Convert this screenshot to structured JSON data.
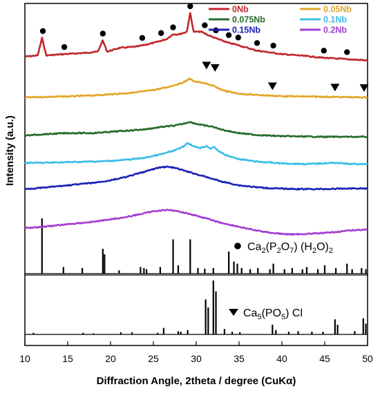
{
  "chart_data": {
    "type": "line",
    "title": "",
    "xlabel": "Diffraction Angle, 2theta / degree (CuKα)",
    "ylabel": "Intensity (a.u.)",
    "xlim": [
      10,
      50
    ],
    "xticks": [
      10,
      15,
      20,
      25,
      30,
      35,
      40,
      45,
      50
    ],
    "yticks_shown": false,
    "legend_position": "top-right",
    "grid": false,
    "series": [
      {
        "name": "0Nb",
        "color": "#c0262b",
        "x": [
          10,
          11.5,
          12,
          12.5,
          14.5,
          17,
          18.5,
          19.1,
          19.6,
          21,
          23,
          25,
          26.5,
          27.3,
          28,
          28.9,
          29.3,
          29.7,
          30.6,
          31.5,
          32.2,
          33,
          33.8,
          34.5,
          35,
          36,
          37,
          38,
          39,
          40,
          42,
          45,
          47.5,
          50
        ],
        "y": [
          20,
          21,
          35,
          21,
          22,
          23,
          24,
          33,
          24,
          27,
          28,
          31,
          34,
          38,
          38,
          40,
          55,
          40,
          40,
          37,
          35,
          33,
          31,
          30,
          29,
          27,
          25,
          24,
          23,
          22,
          21,
          19,
          18,
          17
        ]
      },
      {
        "name": "0.05Nb",
        "color": "#e2a527",
        "x": [
          10,
          13,
          16,
          19,
          21,
          23,
          25,
          26.5,
          27.5,
          28.5,
          29.2,
          29.8,
          30.5,
          31.2,
          31.7,
          32.1,
          32.6,
          33.5,
          35,
          37,
          40,
          45,
          50
        ],
        "y": [
          15,
          15.5,
          16,
          17,
          18,
          19,
          21,
          23,
          25,
          27,
          30,
          28,
          27,
          26,
          25,
          24,
          22,
          20,
          18,
          17,
          16,
          15.5,
          15
        ]
      },
      {
        "name": "0.075Nb",
        "color": "#266b2b",
        "x": [
          10,
          12,
          15,
          18,
          20,
          22,
          24,
          26,
          27.5,
          28.5,
          29.2,
          30,
          31,
          31.5,
          32,
          32.6,
          33.5,
          35,
          37,
          40,
          45,
          50
        ],
        "y": [
          6,
          7,
          8,
          8,
          9,
          10,
          11,
          13,
          14,
          15.5,
          17,
          15.5,
          14,
          13.5,
          13,
          11.5,
          10,
          8,
          6.5,
          5.5,
          5,
          5
        ]
      },
      {
        "name": "0.1Nb",
        "color": "#3bbde8",
        "x": [
          10,
          12,
          15,
          18,
          20,
          22,
          24,
          26,
          27.5,
          28.5,
          29,
          29.8,
          30.5,
          31.2,
          31.7,
          32.1,
          32.7,
          33.5,
          35,
          37,
          40,
          43,
          46.2,
          48,
          50
        ],
        "y": [
          3,
          3,
          3.5,
          4,
          4.5,
          5.5,
          7,
          10,
          13,
          16,
          19,
          16,
          15,
          16.5,
          14.5,
          15.5,
          12,
          9,
          6,
          4,
          2.5,
          2,
          3,
          2,
          2
        ]
      },
      {
        "name": "0.15Nb",
        "color": "#1a22b5",
        "x": [
          10,
          12,
          15,
          18,
          20,
          22,
          24,
          25.5,
          26.5,
          27.5,
          28.5,
          30,
          31.5,
          33,
          35,
          37,
          39,
          42,
          45,
          48,
          50
        ],
        "y": [
          3,
          4,
          6,
          8,
          10,
          13,
          17,
          20,
          21,
          20,
          18,
          15,
          12,
          9,
          6,
          4.5,
          3.5,
          3,
          3,
          3.5,
          3.5
        ]
      },
      {
        "name": "0.2Nb",
        "color": "#a23ed1",
        "x": [
          10,
          12,
          15,
          18,
          20,
          22,
          24,
          25.5,
          26.5,
          27.5,
          28.5,
          30,
          31.5,
          33,
          35,
          37,
          39,
          40.5,
          42,
          45,
          48,
          50
        ],
        "y": [
          -5,
          -4,
          -2,
          0,
          2,
          4,
          7,
          9,
          9.5,
          9,
          7.5,
          5,
          2,
          -1,
          -4,
          -7,
          -9,
          -10,
          -10,
          -9,
          -7,
          -6
        ]
      }
    ],
    "reference_patterns": [
      {
        "name": "Ca2(P2O7)(H2O)2",
        "name_parts": [
          "Ca",
          "2",
          "(P",
          "2",
          "O",
          "7",
          ") (H",
          "2",
          "O)",
          "2"
        ],
        "marker": "●",
        "peaks": [
          [
            12.0,
            100
          ],
          [
            14.5,
            12
          ],
          [
            16.7,
            10
          ],
          [
            19.1,
            45
          ],
          [
            19.3,
            35
          ],
          [
            21.0,
            6
          ],
          [
            23.5,
            12
          ],
          [
            23.9,
            10
          ],
          [
            24.2,
            8
          ],
          [
            25.8,
            12
          ],
          [
            27.3,
            62
          ],
          [
            27.9,
            15
          ],
          [
            29.3,
            62
          ],
          [
            30.2,
            10
          ],
          [
            31.0,
            9
          ],
          [
            32.0,
            10
          ],
          [
            33.8,
            40
          ],
          [
            34.4,
            22
          ],
          [
            34.8,
            18
          ],
          [
            35.3,
            10
          ],
          [
            36.3,
            8
          ],
          [
            37.2,
            10
          ],
          [
            38.6,
            8
          ],
          [
            39.0,
            18
          ],
          [
            40.3,
            8
          ],
          [
            41.2,
            10
          ],
          [
            42.4,
            8
          ],
          [
            42.9,
            12
          ],
          [
            44.2,
            8
          ],
          [
            45.0,
            15
          ],
          [
            46.3,
            10
          ],
          [
            47.6,
            18
          ],
          [
            48.2,
            8
          ],
          [
            49.3,
            10
          ],
          [
            49.8,
            8
          ]
        ]
      },
      {
        "name": "Ca5(PO5)Cl",
        "name_parts": [
          "Ca",
          "5",
          "(PO",
          "5",
          ") Cl"
        ],
        "marker": "▼",
        "peaks": [
          [
            11.0,
            3
          ],
          [
            16.8,
            3
          ],
          [
            18.0,
            2
          ],
          [
            21.2,
            4
          ],
          [
            22.5,
            4
          ],
          [
            25.5,
            3
          ],
          [
            26.2,
            12
          ],
          [
            27.9,
            6
          ],
          [
            28.2,
            5
          ],
          [
            29.0,
            8
          ],
          [
            31.1,
            65
          ],
          [
            31.4,
            50
          ],
          [
            32.0,
            100
          ],
          [
            32.3,
            80
          ],
          [
            33.3,
            10
          ],
          [
            34.2,
            5
          ],
          [
            35.1,
            4
          ],
          [
            38.9,
            18
          ],
          [
            39.3,
            8
          ],
          [
            40.8,
            5
          ],
          [
            41.9,
            6
          ],
          [
            43.5,
            5
          ],
          [
            44.8,
            5
          ],
          [
            46.2,
            28
          ],
          [
            46.5,
            18
          ],
          [
            48.5,
            6
          ],
          [
            49.5,
            30
          ],
          [
            49.8,
            20
          ]
        ]
      }
    ],
    "phase_markers": [
      {
        "symbol": "●",
        "series": "0Nb",
        "x": [
          12.1,
          14.6,
          19.1,
          23.7,
          25.9,
          27.3,
          29.3,
          31.0,
          32.3,
          33.8,
          34.9,
          37.1,
          39.0,
          44.9,
          47.6
        ]
      },
      {
        "symbol": "▼",
        "series": "0.05Nb",
        "x": [
          31.2,
          32.2,
          38.9,
          46.2,
          49.6
        ]
      }
    ]
  }
}
